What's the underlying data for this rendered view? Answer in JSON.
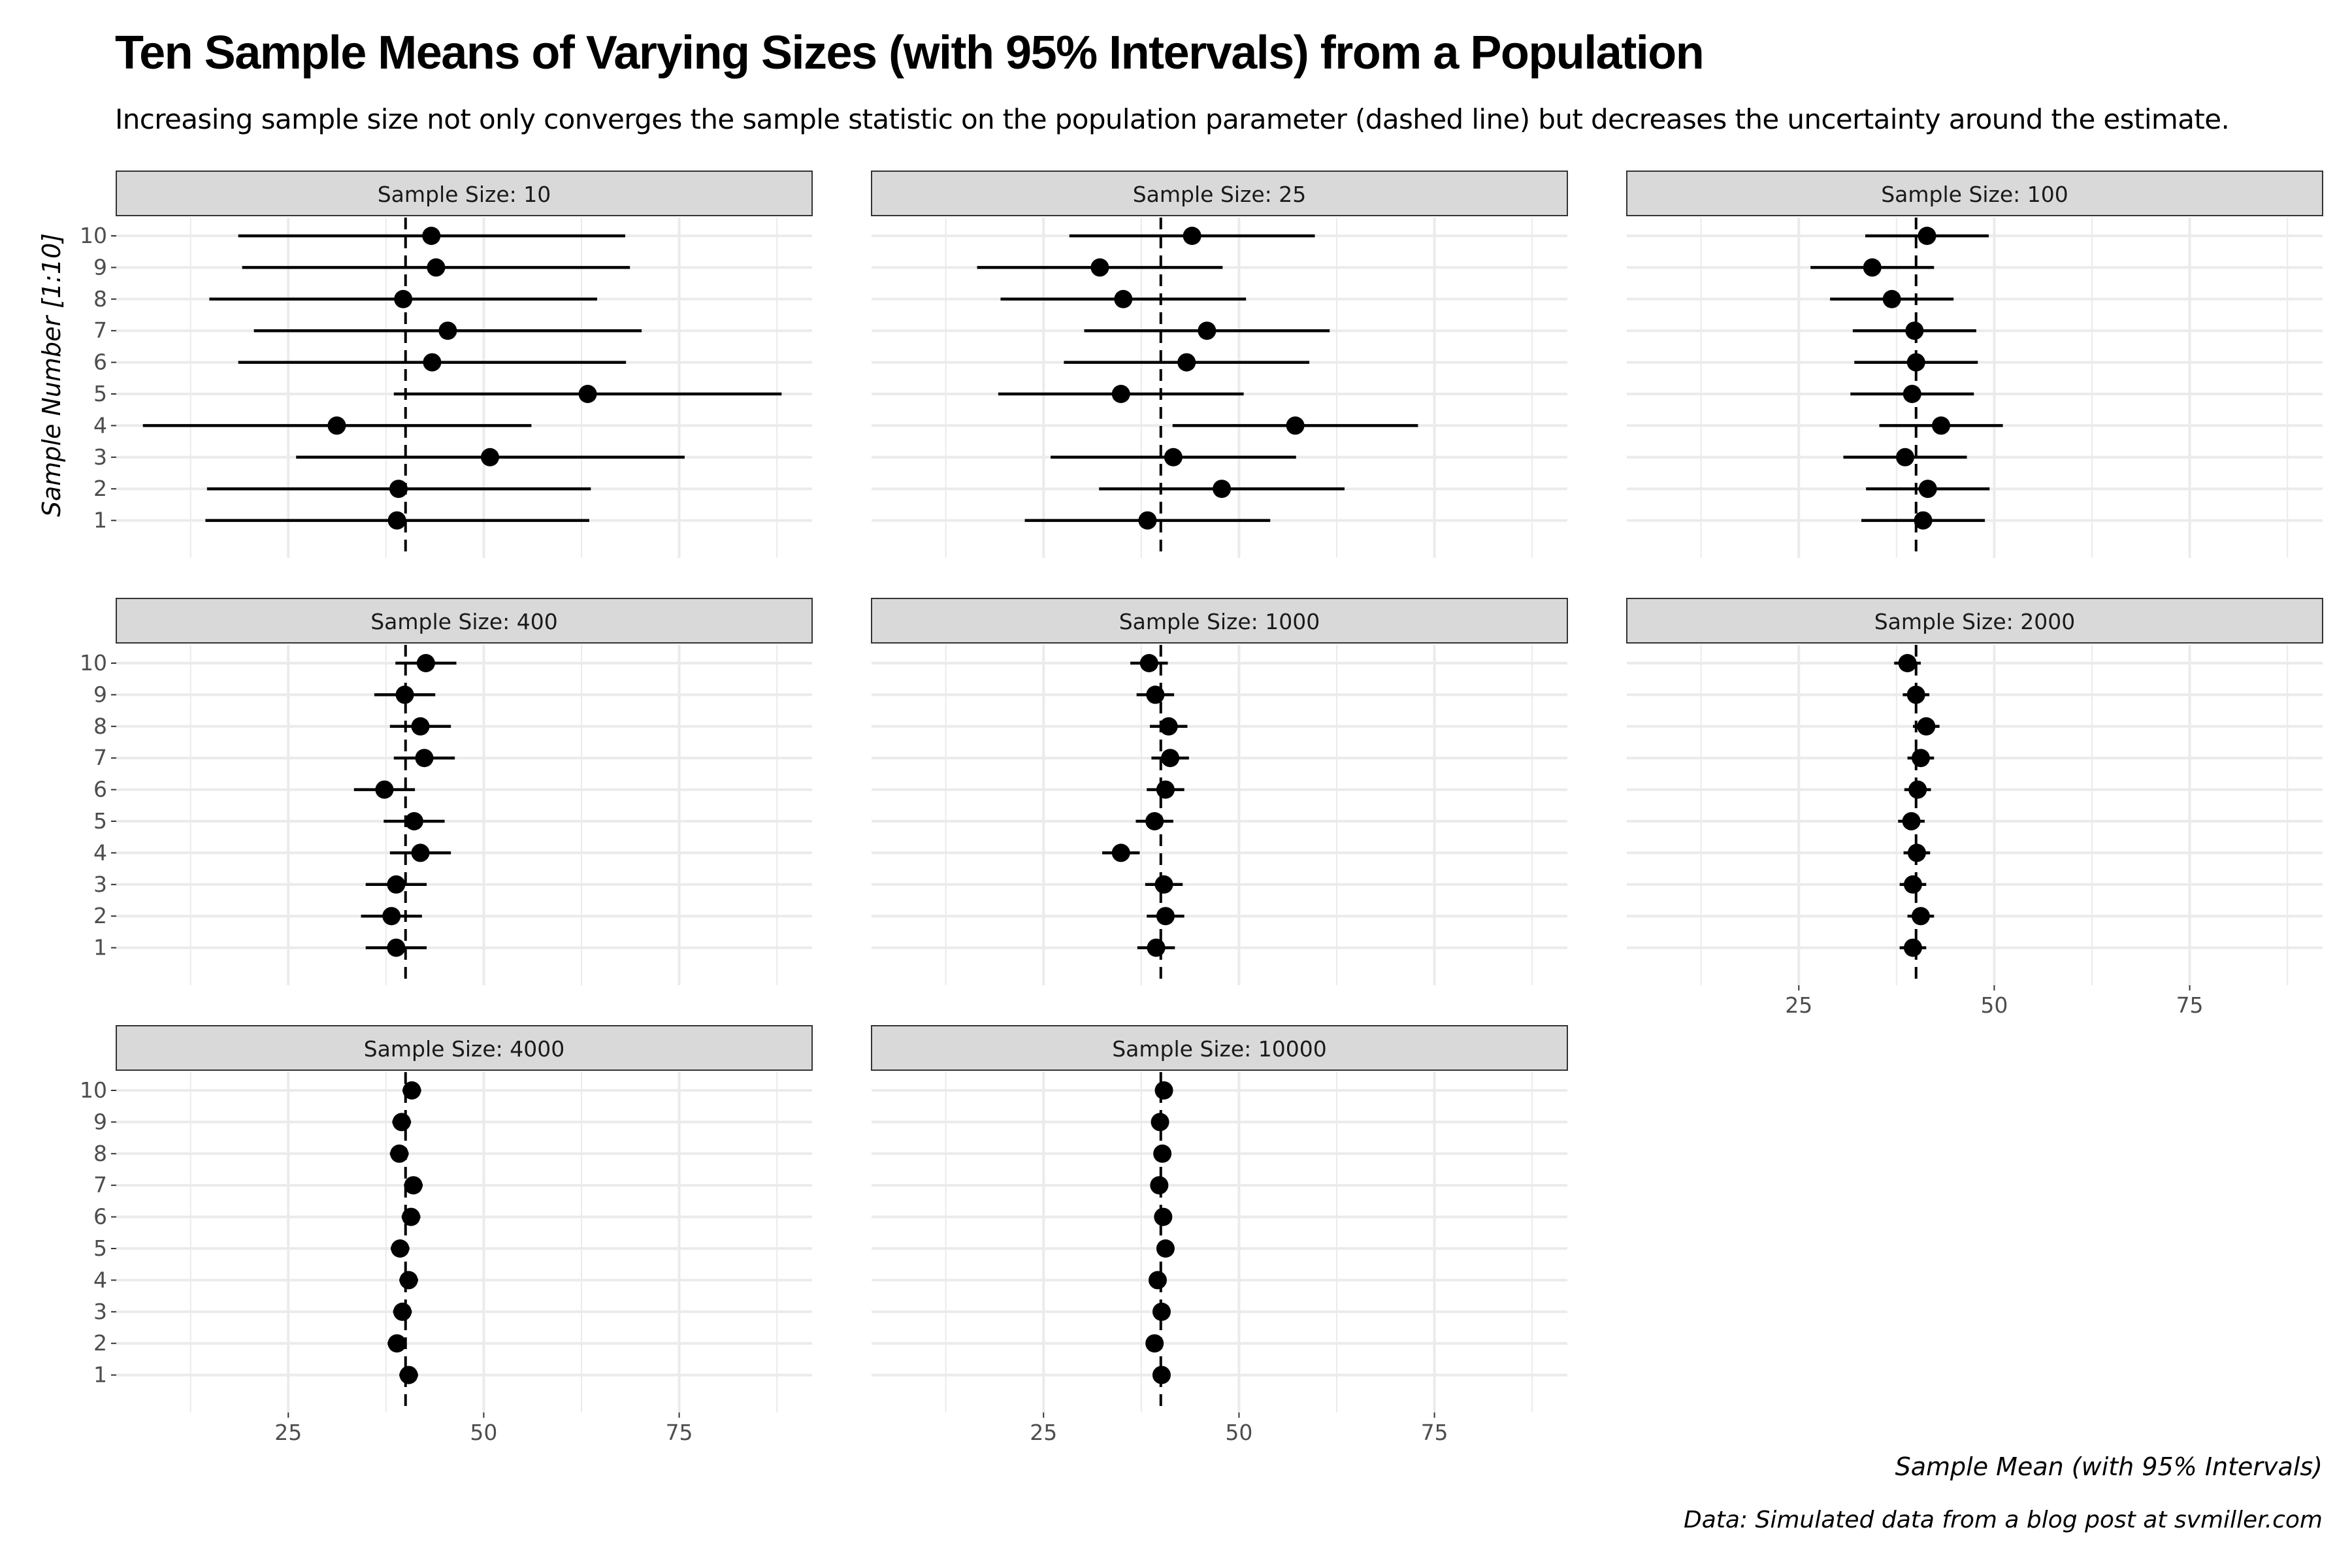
{
  "title": "Ten Sample Means of Varying Sizes (with 95% Intervals) from a Population",
  "subtitle": "Increasing sample size not only converges the sample statistic on the population parameter (dashed line) but decreases the uncertainty around the estimate.",
  "caption": "Data: Simulated data from a blog post at svmiller.com",
  "colors": {
    "strip_fill": "#d9d9d9",
    "strip_border": "#333333",
    "grid": "#ebebeb",
    "points": "#000000"
  },
  "chart_data": {
    "type": "scatter",
    "variant": "faceted point-range (dot and whisker) plot",
    "xlabel": "Sample Mean (with 95% Intervals)",
    "ylabel": "Sample Number [1:10]",
    "xlim": [
      3,
      92
    ],
    "x_ticks": [
      25,
      50,
      75
    ],
    "y_ticks": [
      1,
      2,
      3,
      4,
      5,
      6,
      7,
      8,
      9,
      10
    ],
    "reference_line": {
      "x": 40,
      "style": "dashed"
    },
    "grid": true,
    "facets": [
      {
        "label": "Sample Size: 10",
        "points": [
          {
            "sample": 1,
            "mean": 38.9,
            "lower": 14.4,
            "upper": 63.5
          },
          {
            "sample": 2,
            "mean": 39.1,
            "lower": 14.6,
            "upper": 63.7
          },
          {
            "sample": 3,
            "mean": 50.8,
            "lower": 26.0,
            "upper": 75.7
          },
          {
            "sample": 4,
            "mean": 31.2,
            "lower": 6.4,
            "upper": 56.1
          },
          {
            "sample": 5,
            "mean": 63.3,
            "lower": 38.5,
            "upper": 88.1
          },
          {
            "sample": 6,
            "mean": 43.4,
            "lower": 18.6,
            "upper": 68.2
          },
          {
            "sample": 7,
            "mean": 45.4,
            "lower": 20.6,
            "upper": 70.2
          },
          {
            "sample": 8,
            "mean": 39.7,
            "lower": 14.9,
            "upper": 64.5
          },
          {
            "sample": 9,
            "mean": 43.9,
            "lower": 19.1,
            "upper": 68.7
          },
          {
            "sample": 10,
            "mean": 43.3,
            "lower": 18.6,
            "upper": 68.1
          }
        ]
      },
      {
        "label": "Sample Size: 25",
        "points": [
          {
            "sample": 1,
            "mean": 38.3,
            "lower": 22.6,
            "upper": 54.0
          },
          {
            "sample": 2,
            "mean": 47.8,
            "lower": 32.1,
            "upper": 63.5
          },
          {
            "sample": 3,
            "mean": 41.6,
            "lower": 25.9,
            "upper": 57.3
          },
          {
            "sample": 4,
            "mean": 57.2,
            "lower": 41.5,
            "upper": 72.9
          },
          {
            "sample": 5,
            "mean": 34.9,
            "lower": 19.2,
            "upper": 50.6
          },
          {
            "sample": 6,
            "mean": 43.3,
            "lower": 27.6,
            "upper": 59.0
          },
          {
            "sample": 7,
            "mean": 45.9,
            "lower": 30.2,
            "upper": 61.6
          },
          {
            "sample": 8,
            "mean": 35.2,
            "lower": 19.5,
            "upper": 50.9
          },
          {
            "sample": 9,
            "mean": 32.2,
            "lower": 16.5,
            "upper": 47.9
          },
          {
            "sample": 10,
            "mean": 44.0,
            "lower": 28.3,
            "upper": 59.7
          }
        ]
      },
      {
        "label": "Sample Size: 100",
        "points": [
          {
            "sample": 1,
            "mean": 40.9,
            "lower": 33.0,
            "upper": 48.8
          },
          {
            "sample": 2,
            "mean": 41.5,
            "lower": 33.6,
            "upper": 49.4
          },
          {
            "sample": 3,
            "mean": 38.6,
            "lower": 30.7,
            "upper": 46.5
          },
          {
            "sample": 4,
            "mean": 43.2,
            "lower": 35.3,
            "upper": 51.1
          },
          {
            "sample": 5,
            "mean": 39.5,
            "lower": 31.6,
            "upper": 47.4
          },
          {
            "sample": 6,
            "mean": 40.0,
            "lower": 32.1,
            "upper": 47.9
          },
          {
            "sample": 7,
            "mean": 39.8,
            "lower": 31.9,
            "upper": 47.7
          },
          {
            "sample": 8,
            "mean": 36.9,
            "lower": 29.0,
            "upper": 44.8
          },
          {
            "sample": 9,
            "mean": 34.4,
            "lower": 26.5,
            "upper": 42.3
          },
          {
            "sample": 10,
            "mean": 41.4,
            "lower": 33.5,
            "upper": 49.3
          }
        ]
      },
      {
        "label": "Sample Size: 400",
        "points": [
          {
            "sample": 1,
            "mean": 38.8,
            "lower": 34.9,
            "upper": 42.7
          },
          {
            "sample": 2,
            "mean": 38.2,
            "lower": 34.3,
            "upper": 42.1
          },
          {
            "sample": 3,
            "mean": 38.8,
            "lower": 34.9,
            "upper": 42.7
          },
          {
            "sample": 4,
            "mean": 41.9,
            "lower": 38.0,
            "upper": 45.8
          },
          {
            "sample": 5,
            "mean": 41.1,
            "lower": 37.2,
            "upper": 45.0
          },
          {
            "sample": 6,
            "mean": 37.3,
            "lower": 33.4,
            "upper": 41.2
          },
          {
            "sample": 7,
            "mean": 42.4,
            "lower": 38.5,
            "upper": 46.3
          },
          {
            "sample": 8,
            "mean": 41.9,
            "lower": 38.0,
            "upper": 45.8
          },
          {
            "sample": 9,
            "mean": 39.9,
            "lower": 36.0,
            "upper": 43.8
          },
          {
            "sample": 10,
            "mean": 42.6,
            "lower": 38.7,
            "upper": 46.5
          }
        ]
      },
      {
        "label": "Sample Size: 1000",
        "points": [
          {
            "sample": 1,
            "mean": 39.4,
            "lower": 37.0,
            "upper": 41.8
          },
          {
            "sample": 2,
            "mean": 40.6,
            "lower": 38.2,
            "upper": 43.0
          },
          {
            "sample": 3,
            "mean": 40.4,
            "lower": 38.0,
            "upper": 42.8
          },
          {
            "sample": 4,
            "mean": 34.9,
            "lower": 32.5,
            "upper": 37.3
          },
          {
            "sample": 5,
            "mean": 39.2,
            "lower": 36.8,
            "upper": 41.6
          },
          {
            "sample": 6,
            "mean": 40.6,
            "lower": 38.2,
            "upper": 43.0
          },
          {
            "sample": 7,
            "mean": 41.2,
            "lower": 38.8,
            "upper": 43.6
          },
          {
            "sample": 8,
            "mean": 41.0,
            "lower": 38.6,
            "upper": 43.4
          },
          {
            "sample": 9,
            "mean": 39.3,
            "lower": 36.9,
            "upper": 41.7
          },
          {
            "sample": 10,
            "mean": 38.5,
            "lower": 36.1,
            "upper": 40.9
          }
        ]
      },
      {
        "label": "Sample Size: 2000",
        "points": [
          {
            "sample": 1,
            "mean": 39.6,
            "lower": 37.9,
            "upper": 41.3
          },
          {
            "sample": 2,
            "mean": 40.6,
            "lower": 38.9,
            "upper": 42.3
          },
          {
            "sample": 3,
            "mean": 39.6,
            "lower": 37.9,
            "upper": 41.3
          },
          {
            "sample": 4,
            "mean": 40.1,
            "lower": 38.4,
            "upper": 41.8
          },
          {
            "sample": 5,
            "mean": 39.4,
            "lower": 37.7,
            "upper": 41.1
          },
          {
            "sample": 6,
            "mean": 40.2,
            "lower": 38.5,
            "upper": 41.9
          },
          {
            "sample": 7,
            "mean": 40.6,
            "lower": 38.9,
            "upper": 42.3
          },
          {
            "sample": 8,
            "mean": 41.3,
            "lower": 39.6,
            "upper": 43.0
          },
          {
            "sample": 9,
            "mean": 40.0,
            "lower": 38.3,
            "upper": 41.7
          },
          {
            "sample": 10,
            "mean": 38.9,
            "lower": 37.2,
            "upper": 40.6
          }
        ]
      },
      {
        "label": "Sample Size: 4000",
        "points": [
          {
            "sample": 1,
            "mean": 40.4,
            "lower": 39.2,
            "upper": 41.6
          },
          {
            "sample": 2,
            "mean": 38.9,
            "lower": 37.7,
            "upper": 40.1
          },
          {
            "sample": 3,
            "mean": 39.6,
            "lower": 38.4,
            "upper": 40.8
          },
          {
            "sample": 4,
            "mean": 40.4,
            "lower": 39.2,
            "upper": 41.6
          },
          {
            "sample": 5,
            "mean": 39.3,
            "lower": 38.1,
            "upper": 40.5
          },
          {
            "sample": 6,
            "mean": 40.7,
            "lower": 39.5,
            "upper": 41.9
          },
          {
            "sample": 7,
            "mean": 41.0,
            "lower": 39.8,
            "upper": 42.2
          },
          {
            "sample": 8,
            "mean": 39.2,
            "lower": 38.0,
            "upper": 40.4
          },
          {
            "sample": 9,
            "mean": 39.5,
            "lower": 38.3,
            "upper": 40.7
          },
          {
            "sample": 10,
            "mean": 40.8,
            "lower": 39.6,
            "upper": 42.0
          }
        ]
      },
      {
        "label": "Sample Size: 10000",
        "points": [
          {
            "sample": 1,
            "mean": 40.1,
            "lower": 39.3,
            "upper": 40.9
          },
          {
            "sample": 2,
            "mean": 39.2,
            "lower": 38.4,
            "upper": 40.0
          },
          {
            "sample": 3,
            "mean": 40.1,
            "lower": 39.3,
            "upper": 40.9
          },
          {
            "sample": 4,
            "mean": 39.6,
            "lower": 38.8,
            "upper": 40.4
          },
          {
            "sample": 5,
            "mean": 40.6,
            "lower": 39.8,
            "upper": 41.4
          },
          {
            "sample": 6,
            "mean": 40.3,
            "lower": 39.5,
            "upper": 41.1
          },
          {
            "sample": 7,
            "mean": 39.8,
            "lower": 39.0,
            "upper": 40.6
          },
          {
            "sample": 8,
            "mean": 40.2,
            "lower": 39.4,
            "upper": 41.0
          },
          {
            "sample": 9,
            "mean": 39.9,
            "lower": 39.1,
            "upper": 40.7
          },
          {
            "sample": 10,
            "mean": 40.4,
            "lower": 39.6,
            "upper": 41.2
          }
        ]
      }
    ]
  }
}
